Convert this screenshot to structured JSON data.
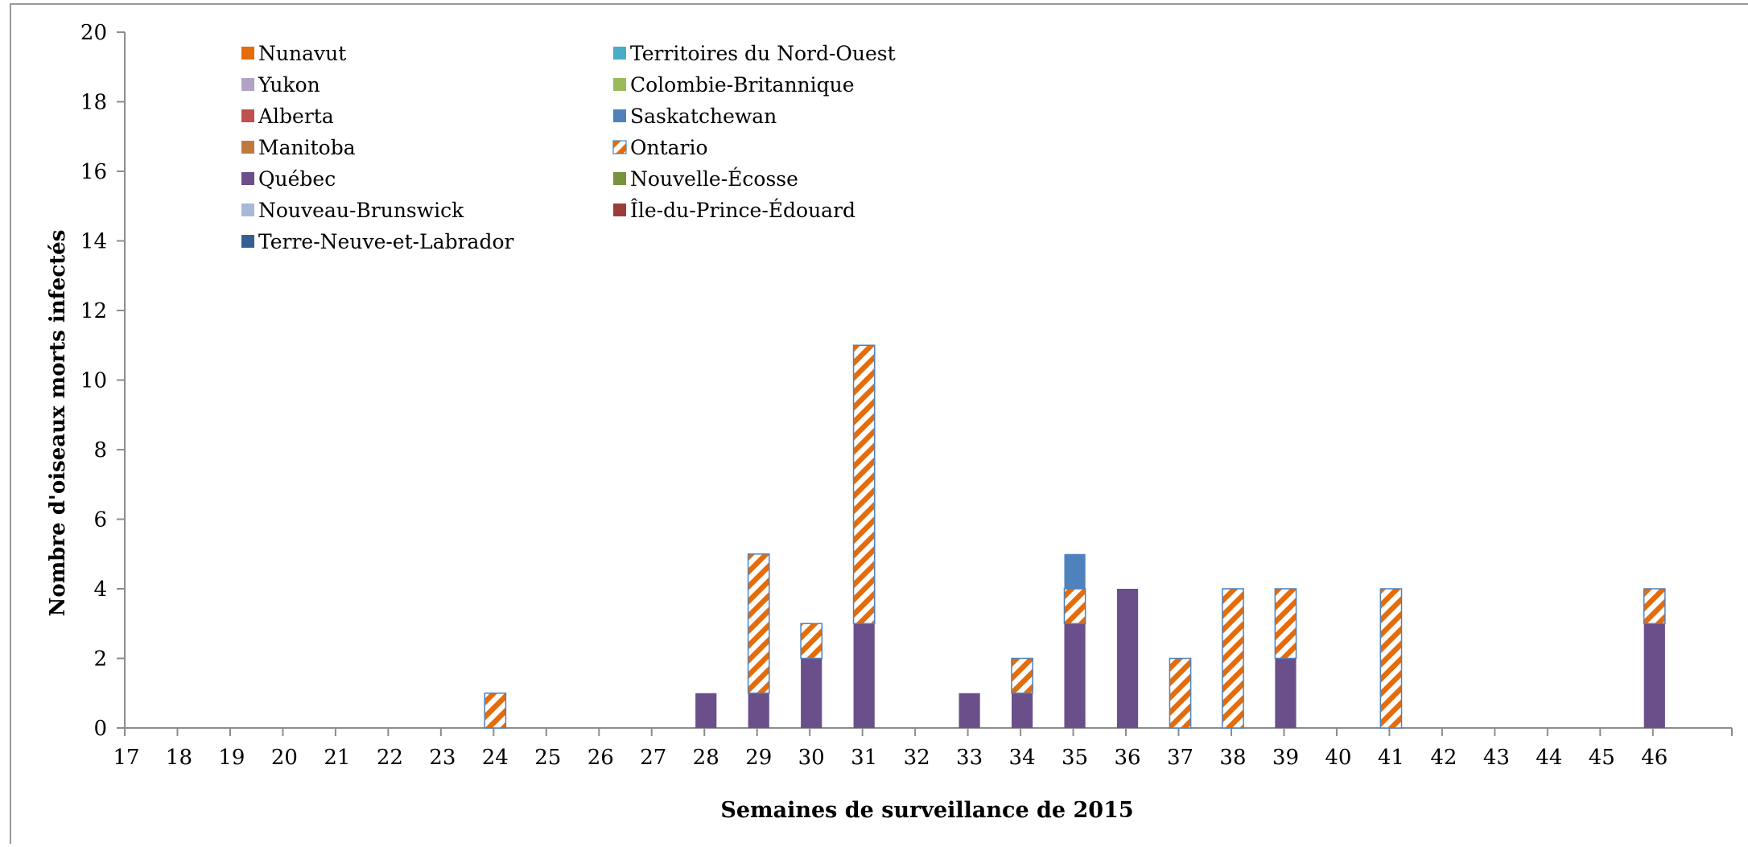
{
  "chart_data": {
    "type": "bar",
    "stacked": true,
    "title": "",
    "xlabel": "Semaines de surveillance de 2015",
    "ylabel": "Nombre d'oiseaux morts infectés",
    "ylim": [
      0,
      20
    ],
    "yticks": [
      "0",
      "2",
      "4",
      "6",
      "8",
      "10",
      "12",
      "14",
      "16",
      "18",
      "20"
    ],
    "categories": [
      "17",
      "18",
      "19",
      "20",
      "21",
      "22",
      "23",
      "24",
      "25",
      "26",
      "27",
      "28",
      "29",
      "30",
      "31",
      "32",
      "33",
      "34",
      "35",
      "36",
      "37",
      "38",
      "39",
      "40",
      "41",
      "42",
      "43",
      "44",
      "45",
      "46"
    ],
    "grid": false,
    "legend_position": "top-left",
    "series": [
      {
        "name": "Nunavut",
        "color": "#E46C0A",
        "pattern": "solid",
        "values": [
          0,
          0,
          0,
          0,
          0,
          0,
          0,
          0,
          0,
          0,
          0,
          0,
          0,
          0,
          0,
          0,
          0,
          0,
          0,
          0,
          0,
          0,
          0,
          0,
          0,
          0,
          0,
          0,
          0,
          0
        ]
      },
      {
        "name": "Territoires du Nord-Ouest",
        "color": "#4BACC6",
        "pattern": "solid",
        "values": [
          0,
          0,
          0,
          0,
          0,
          0,
          0,
          0,
          0,
          0,
          0,
          0,
          0,
          0,
          0,
          0,
          0,
          0,
          0,
          0,
          0,
          0,
          0,
          0,
          0,
          0,
          0,
          0,
          0,
          0
        ]
      },
      {
        "name": "Yukon",
        "color": "#B3A2C7",
        "pattern": "solid",
        "values": [
          0,
          0,
          0,
          0,
          0,
          0,
          0,
          0,
          0,
          0,
          0,
          0,
          0,
          0,
          0,
          0,
          0,
          0,
          0,
          0,
          0,
          0,
          0,
          0,
          0,
          0,
          0,
          0,
          0,
          0
        ]
      },
      {
        "name": "Colombie-Britannique",
        "color": "#9BBB59",
        "pattern": "solid",
        "values": [
          0,
          0,
          0,
          0,
          0,
          0,
          0,
          0,
          0,
          0,
          0,
          0,
          0,
          0,
          0,
          0,
          0,
          0,
          0,
          0,
          0,
          0,
          0,
          0,
          0,
          0,
          0,
          0,
          0,
          0
        ]
      },
      {
        "name": "Alberta",
        "color": "#C0504D",
        "pattern": "solid",
        "values": [
          0,
          0,
          0,
          0,
          0,
          0,
          0,
          0,
          0,
          0,
          0,
          0,
          0,
          0,
          0,
          0,
          0,
          0,
          0,
          0,
          0,
          0,
          0,
          0,
          0,
          0,
          0,
          0,
          0,
          0
        ]
      },
      {
        "name": "Saskatchewan",
        "color": "#4F81BD",
        "pattern": "solid",
        "values": [
          0,
          0,
          0,
          0,
          0,
          0,
          0,
          0,
          0,
          0,
          0,
          0,
          0,
          0,
          0,
          0,
          0,
          0,
          1,
          0,
          0,
          0,
          0,
          0,
          0,
          0,
          0,
          0,
          0,
          0
        ]
      },
      {
        "name": "Manitoba",
        "color": "#C0793D",
        "pattern": "solid",
        "values": [
          0,
          0,
          0,
          0,
          0,
          0,
          0,
          0,
          0,
          0,
          0,
          0,
          0,
          0,
          0,
          0,
          0,
          0,
          0,
          0,
          0,
          0,
          0,
          0,
          0,
          0,
          0,
          0,
          0,
          0
        ]
      },
      {
        "name": "Ontario",
        "color": "#E46C0A",
        "pattern": "hatch",
        "values": [
          0,
          0,
          0,
          0,
          0,
          0,
          0,
          1,
          0,
          0,
          0,
          0,
          4,
          1,
          8,
          0,
          0,
          1,
          1,
          0,
          2,
          4,
          2,
          0,
          4,
          0,
          0,
          0,
          0,
          1
        ]
      },
      {
        "name": "Québec",
        "color": "#6A4F8A",
        "pattern": "solid",
        "values": [
          0,
          0,
          0,
          0,
          0,
          0,
          0,
          0,
          0,
          0,
          0,
          1,
          1,
          2,
          3,
          0,
          1,
          1,
          3,
          4,
          0,
          0,
          2,
          0,
          0,
          0,
          0,
          0,
          0,
          3
        ]
      },
      {
        "name": "Nouvelle-Écosse",
        "color": "#77933C",
        "pattern": "solid",
        "values": [
          0,
          0,
          0,
          0,
          0,
          0,
          0,
          0,
          0,
          0,
          0,
          0,
          0,
          0,
          0,
          0,
          0,
          0,
          0,
          0,
          0,
          0,
          0,
          0,
          0,
          0,
          0,
          0,
          0,
          0
        ]
      },
      {
        "name": "Nouveau-Brunswick",
        "color": "#A6B9D8",
        "pattern": "solid",
        "values": [
          0,
          0,
          0,
          0,
          0,
          0,
          0,
          0,
          0,
          0,
          0,
          0,
          0,
          0,
          0,
          0,
          0,
          0,
          0,
          0,
          0,
          0,
          0,
          0,
          0,
          0,
          0,
          0,
          0,
          0
        ]
      },
      {
        "name": "Île-du-Prince-Édouard",
        "color": "#9C3D3B",
        "pattern": "solid",
        "values": [
          0,
          0,
          0,
          0,
          0,
          0,
          0,
          0,
          0,
          0,
          0,
          0,
          0,
          0,
          0,
          0,
          0,
          0,
          0,
          0,
          0,
          0,
          0,
          0,
          0,
          0,
          0,
          0,
          0,
          0
        ]
      },
      {
        "name": "Terre-Neuve-et-Labrador",
        "color": "#366092",
        "pattern": "solid",
        "values": [
          0,
          0,
          0,
          0,
          0,
          0,
          0,
          0,
          0,
          0,
          0,
          0,
          0,
          0,
          0,
          0,
          0,
          0,
          0,
          0,
          0,
          0,
          0,
          0,
          0,
          0,
          0,
          0,
          0,
          0
        ]
      }
    ],
    "stack_order": [
      "Québec",
      "Ontario",
      "Saskatchewan"
    ],
    "legend_order": [
      "Nunavut",
      "Territoires du Nord-Ouest",
      "Yukon",
      "Colombie-Britannique",
      "Alberta",
      "Saskatchewan",
      "Manitoba",
      "Ontario",
      "Québec",
      "Nouvelle-Écosse",
      "Nouveau-Brunswick",
      "Île-du-Prince-Édouard",
      "Terre-Neuve-et-Labrador"
    ]
  }
}
